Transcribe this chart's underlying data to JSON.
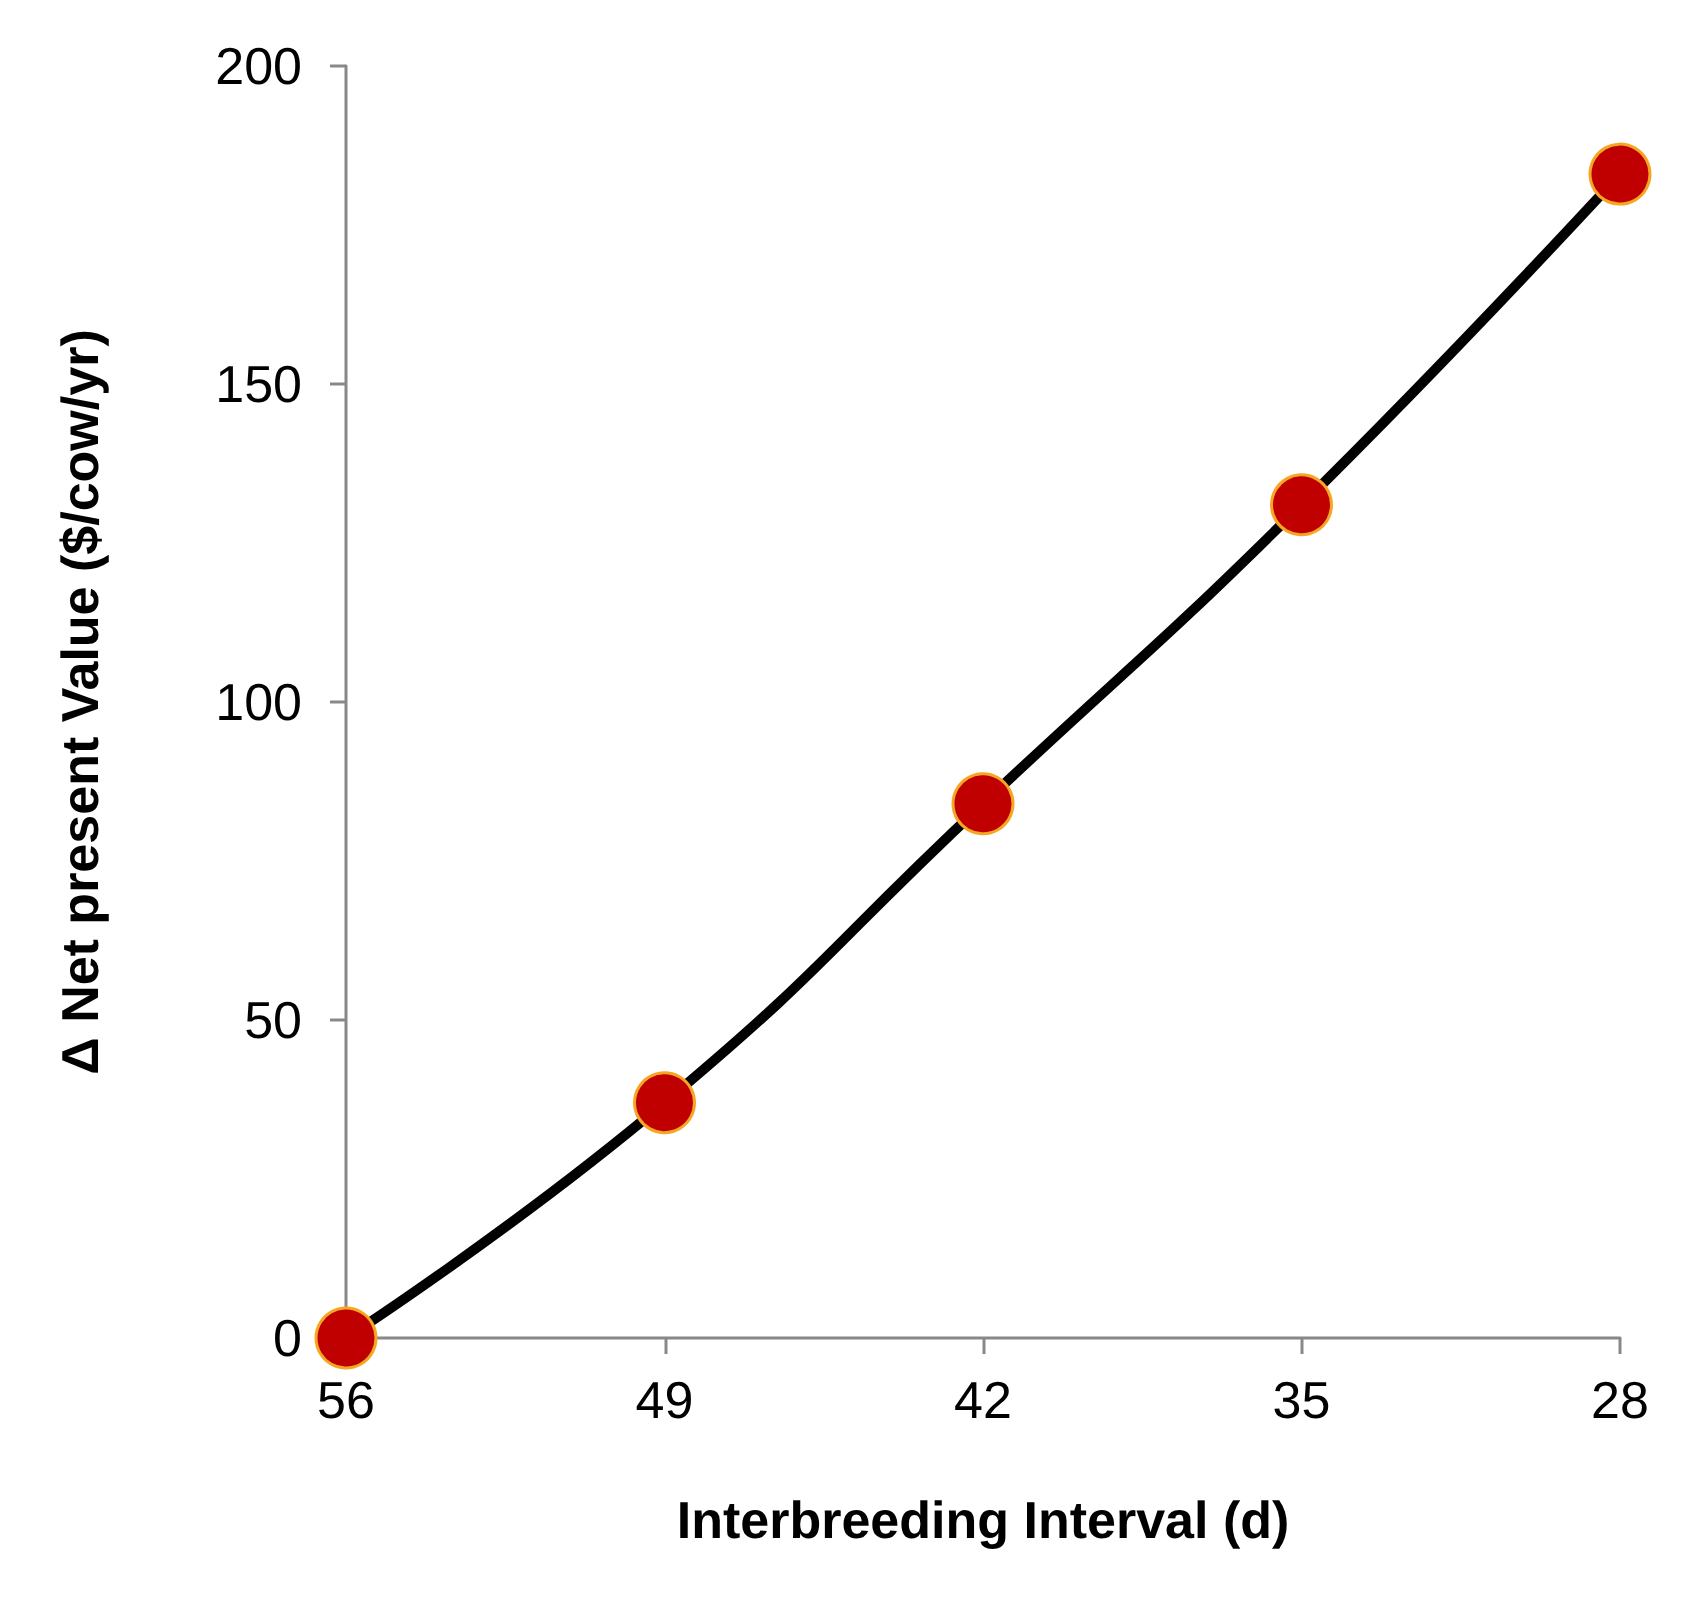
{
  "chart_data": {
    "type": "line",
    "xlabel": "Interbreeding Interval (d)",
    "ylabel": "Δ Net present Value ($/cow/yr)",
    "categories": [
      "56",
      "49",
      "42",
      "35",
      "28"
    ],
    "series": [
      {
        "color": "#c00000",
        "values": [
          0,
          37,
          84,
          131,
          183
        ]
      }
    ],
    "ylim": [
      0,
      200
    ],
    "yticks": [
      0,
      50,
      100,
      150,
      200
    ],
    "grid": false,
    "marker": "circle",
    "line_style": "solid"
  }
}
